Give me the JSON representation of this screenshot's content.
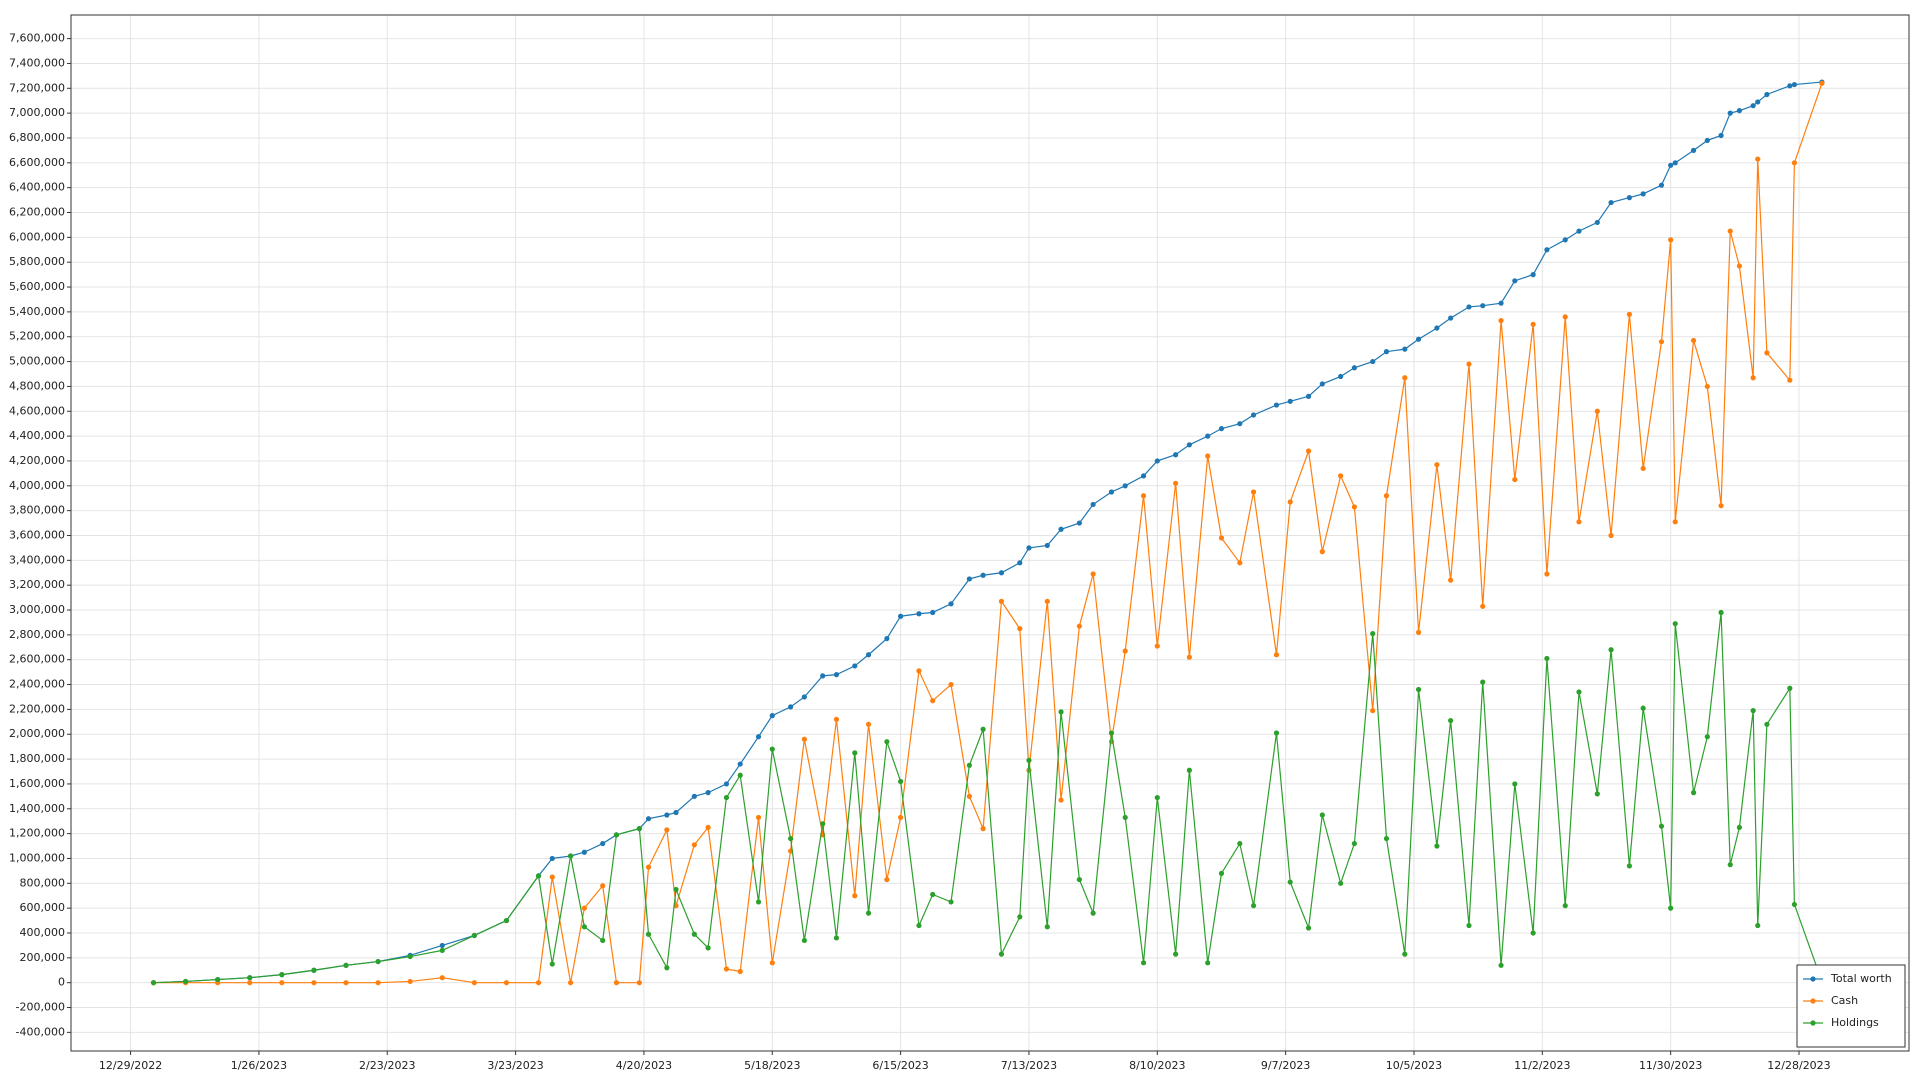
{
  "chart_data": {
    "type": "line",
    "x": [
      "1/3/2023",
      "1/10/2023",
      "1/17/2023",
      "1/24/2023",
      "1/31/2023",
      "2/7/2023",
      "2/14/2023",
      "2/21/2023",
      "2/28/2023",
      "3/7/2023",
      "3/14/2023",
      "3/21/2023",
      "3/28/2023",
      "3/31/2023",
      "4/4/2023",
      "4/7/2023",
      "4/11/2023",
      "4/14/2023",
      "4/19/2023",
      "4/21/2023",
      "4/25/2023",
      "4/27/2023",
      "5/1/2023",
      "5/4/2023",
      "5/8/2023",
      "5/11/2023",
      "5/15/2023",
      "5/18/2023",
      "5/22/2023",
      "5/25/2023",
      "5/29/2023",
      "6/1/2023",
      "6/5/2023",
      "6/8/2023",
      "6/12/2023",
      "6/15/2023",
      "6/19/2023",
      "6/22/2023",
      "6/26/2023",
      "6/30/2023",
      "7/3/2023",
      "7/7/2023",
      "7/11/2023",
      "7/13/2023",
      "7/17/2023",
      "7/20/2023",
      "7/24/2023",
      "7/27/2023",
      "7/31/2023",
      "8/3/2023",
      "8/7/2023",
      "8/10/2023",
      "8/14/2023",
      "8/17/2023",
      "8/21/2023",
      "8/24/2023",
      "8/28/2023",
      "8/31/2023",
      "9/5/2023",
      "9/8/2023",
      "9/12/2023",
      "9/15/2023",
      "9/19/2023",
      "9/22/2023",
      "9/26/2023",
      "9/29/2023",
      "10/3/2023",
      "10/6/2023",
      "10/10/2023",
      "10/13/2023",
      "10/17/2023",
      "10/20/2023",
      "10/24/2023",
      "10/27/2023",
      "10/31/2023",
      "11/3/2023",
      "11/7/2023",
      "11/10/2023",
      "11/14/2023",
      "11/17/2023",
      "11/21/2023",
      "11/24/2023",
      "11/28/2023",
      "11/30/2023",
      "12/1/2023",
      "12/5/2023",
      "12/8/2023",
      "12/11/2023",
      "12/13/2023",
      "12/15/2023",
      "12/18/2023",
      "12/19/2023",
      "12/21/2023",
      "12/26/2023",
      "12/27/2023",
      "1/2/2024"
    ],
    "series": [
      {
        "name": "Total worth",
        "color": "#1f77b4",
        "values": [
          0,
          10000,
          25000,
          40000,
          65000,
          100000,
          140000,
          170000,
          220000,
          300000,
          380000,
          500000,
          860000,
          1000000,
          1020000,
          1050000,
          1120000,
          1190000,
          1240000,
          1320000,
          1350000,
          1370000,
          1500000,
          1530000,
          1600000,
          1760000,
          1980000,
          2150000,
          2220000,
          2300000,
          2470000,
          2480000,
          2550000,
          2640000,
          2770000,
          2950000,
          2970000,
          2980000,
          3050000,
          3250000,
          3280000,
          3300000,
          3380000,
          3500000,
          3520000,
          3650000,
          3700000,
          3850000,
          3950000,
          4000000,
          4080000,
          4200000,
          4250000,
          4330000,
          4400000,
          4460000,
          4500000,
          4570000,
          4650000,
          4680000,
          4720000,
          4820000,
          4880000,
          4950000,
          5000000,
          5080000,
          5100000,
          5180000,
          5270000,
          5350000,
          5440000,
          5450000,
          5470000,
          5650000,
          5700000,
          5900000,
          5980000,
          6050000,
          6120000,
          6280000,
          6320000,
          6350000,
          6420000,
          6580000,
          6600000,
          6700000,
          6780000,
          6820000,
          7000000,
          7020000,
          7060000,
          7090000,
          7150000,
          7220000,
          7230000,
          7250000
        ]
      },
      {
        "name": "Cash",
        "color": "#ff7f0e",
        "values": [
          0,
          0,
          0,
          0,
          0,
          0,
          0,
          0,
          10000,
          40000,
          0,
          0,
          0,
          850000,
          0,
          600000,
          780000,
          0,
          0,
          930000,
          1230000,
          620000,
          1110000,
          1250000,
          110000,
          90000,
          1330000,
          160000,
          1060000,
          1960000,
          1190000,
          2120000,
          700000,
          2080000,
          830000,
          1330000,
          2510000,
          2270000,
          2400000,
          1500000,
          1240000,
          3070000,
          2850000,
          1710000,
          3070000,
          1470000,
          2870000,
          3290000,
          1940000,
          2670000,
          3920000,
          2710000,
          4020000,
          2620000,
          4240000,
          3580000,
          3380000,
          3950000,
          2640000,
          3870000,
          4280000,
          3470000,
          4080000,
          3830000,
          2190000,
          3920000,
          4870000,
          2820000,
          4170000,
          3240000,
          4980000,
          3030000,
          5330000,
          4050000,
          5300000,
          3290000,
          5360000,
          3710000,
          4600000,
          3600000,
          5380000,
          4140000,
          5160000,
          5980000,
          3710000,
          5170000,
          4800000,
          3840000,
          6050000,
          5770000,
          4870000,
          6630000,
          5070000,
          4850000,
          6600000,
          7240000
        ]
      },
      {
        "name": "Holdings",
        "color": "#2ca02c",
        "values": [
          0,
          10000,
          25000,
          40000,
          65000,
          100000,
          140000,
          170000,
          210000,
          260000,
          380000,
          500000,
          860000,
          150000,
          1020000,
          450000,
          340000,
          1190000,
          1240000,
          390000,
          120000,
          750000,
          390000,
          280000,
          1490000,
          1670000,
          650000,
          1880000,
          1160000,
          340000,
          1280000,
          360000,
          1850000,
          560000,
          1940000,
          1620000,
          460000,
          710000,
          650000,
          1750000,
          2040000,
          230000,
          530000,
          1790000,
          450000,
          2180000,
          830000,
          560000,
          2010000,
          1330000,
          160000,
          1490000,
          230000,
          1710000,
          160000,
          880000,
          1120000,
          620000,
          2010000,
          810000,
          440000,
          1350000,
          800000,
          1120000,
          2810000,
          1160000,
          230000,
          2360000,
          1100000,
          2110000,
          460000,
          2420000,
          140000,
          1600000,
          400000,
          2610000,
          620000,
          2340000,
          1520000,
          2680000,
          940000,
          2210000,
          1260000,
          600000,
          2890000,
          1530000,
          1980000,
          2980000,
          950000,
          1250000,
          2190000,
          460000,
          2080000,
          2370000,
          630000,
          10000
        ]
      }
    ],
    "xlim": [
      "12/16/2022",
      "1/21/2024"
    ],
    "xticks": [
      "12/29/2022",
      "1/26/2023",
      "2/23/2023",
      "3/23/2023",
      "4/20/2023",
      "5/18/2023",
      "6/15/2023",
      "7/13/2023",
      "8/10/2023",
      "9/7/2023",
      "10/5/2023",
      "11/2/2023",
      "11/30/2023",
      "12/28/2023"
    ],
    "ylim": [
      -550000,
      7790000
    ],
    "yticks": [
      {
        "value": -400000,
        "label": "-400,000"
      },
      {
        "value": -200000,
        "label": "-200,000"
      },
      0,
      {
        "value": 200000,
        "label": "200,000"
      },
      {
        "value": 400000,
        "label": "400,000"
      },
      {
        "value": 600000,
        "label": "600,000"
      },
      {
        "value": 800000,
        "label": "800,000"
      },
      {
        "value": 1000000,
        "label": "1,000,000"
      },
      {
        "value": 1200000,
        "label": "1,200,000"
      },
      {
        "value": 1400000,
        "label": "1,400,000"
      },
      {
        "value": 1600000,
        "label": "1,600,000"
      },
      {
        "value": 1800000,
        "label": "1,800,000"
      },
      {
        "value": 2000000,
        "label": "2,000,000"
      },
      {
        "value": 2200000,
        "label": "2,200,000"
      },
      {
        "value": 2400000,
        "label": "2,400,000"
      },
      {
        "value": 2600000,
        "label": "2,600,000"
      },
      {
        "value": 2800000,
        "label": "2,800,000"
      },
      {
        "value": 3000000,
        "label": "3,000,000"
      },
      {
        "value": 3200000,
        "label": "3,200,000"
      },
      {
        "value": 3400000,
        "label": "3,400,000"
      },
      {
        "value": 3600000,
        "label": "3,600,000"
      },
      {
        "value": 3800000,
        "label": "3,800,000"
      },
      {
        "value": 4000000,
        "label": "4,000,000"
      },
      {
        "value": 4200000,
        "label": "4,200,000"
      },
      {
        "value": 4400000,
        "label": "4,400,000"
      },
      {
        "value": 4600000,
        "label": "4,600,000"
      },
      {
        "value": 4800000,
        "label": "4,800,000"
      },
      {
        "value": 5000000,
        "label": "5,000,000"
      },
      {
        "value": 5200000,
        "label": "5,200,000"
      },
      {
        "value": 5400000,
        "label": "5,400,000"
      },
      {
        "value": 5600000,
        "label": "5,600,000"
      },
      {
        "value": 5800000,
        "label": "5,800,000"
      },
      {
        "value": 6000000,
        "label": "6,000,000"
      },
      {
        "value": 6200000,
        "label": "6,200,000"
      },
      {
        "value": 6400000,
        "label": "6,400,000"
      },
      {
        "value": 6600000,
        "label": "6,600,000"
      },
      {
        "value": 6800000,
        "label": "6,800,000"
      },
      {
        "value": 7000000,
        "label": "7,000,000"
      },
      {
        "value": 7200000,
        "label": "7,200,000"
      },
      {
        "value": 7400000,
        "label": "7,400,000"
      },
      {
        "value": 7600000,
        "label": "7,600,000"
      }
    ],
    "grid": true,
    "legend": "lower-right"
  }
}
